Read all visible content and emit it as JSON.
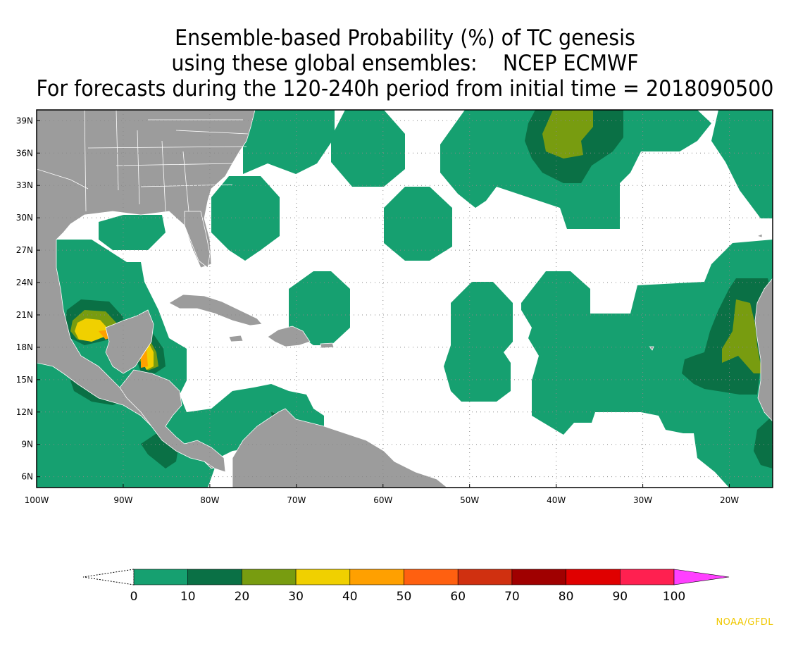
{
  "title": {
    "line1": "Ensemble-based Probability (%) of TC genesis",
    "line2": "using these global ensembles:    NCEP ECMWF",
    "line3": "For forecasts during the 120-240h period from initial time = 2018090500"
  },
  "map": {
    "lat_labels": [
      "39N",
      "36N",
      "33N",
      "30N",
      "27N",
      "24N",
      "21N",
      "18N",
      "15N",
      "12N",
      "9N",
      "6N"
    ],
    "lat_values": [
      39,
      36,
      33,
      30,
      27,
      24,
      21,
      18,
      15,
      12,
      9,
      6
    ],
    "lon_labels": [
      "100W",
      "90W",
      "80W",
      "70W",
      "60W",
      "50W",
      "40W",
      "30W",
      "20W"
    ],
    "lon_values": [
      -100,
      -90,
      -80,
      -70,
      -60,
      -50,
      -40,
      -30,
      -20
    ],
    "lon_range": [
      -100,
      -15
    ],
    "lat_range": [
      5,
      40
    ],
    "land_color": "#9c9c9c",
    "border_color": "#ffffff"
  },
  "legend": {
    "labels": [
      "0",
      "10",
      "20",
      "30",
      "40",
      "50",
      "60",
      "70",
      "80",
      "90",
      "100"
    ],
    "colors": [
      "#16a070",
      "#0a7045",
      "#789c10",
      "#f0d000",
      "#ffa000",
      "#ff6010",
      "#d03010",
      "#a00000",
      "#e00000",
      "#ff2050"
    ],
    "overflow_color": "#ff40ff"
  },
  "credit": "NOAA/GFDL"
}
